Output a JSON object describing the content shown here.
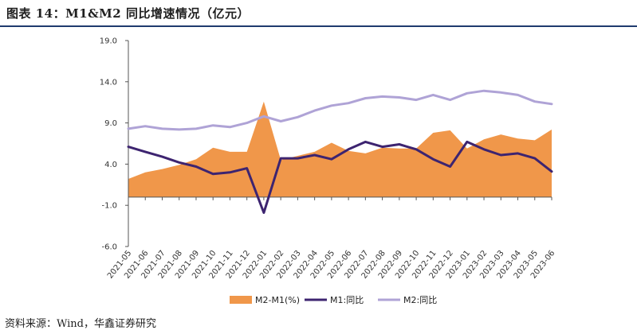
{
  "header": {
    "title": "图表 14：M1&M2 同比增速情况（亿元）"
  },
  "footer": {
    "source": "资料来源：Wind，华鑫证券研究"
  },
  "colors": {
    "area": "#F0974A",
    "m1": "#3D2470",
    "m2": "#AFA3D6",
    "axis": "#555555",
    "rule": "#1f3a6e"
  },
  "chart_data": {
    "type": "line",
    "title": "图表 14：M1&M2 同比增速情况（亿元）",
    "ylim": [
      -6.0,
      19.0
    ],
    "yticks": [
      "19.0",
      "14.0",
      "9.0",
      "4.0",
      "-1.0",
      "-6.0"
    ],
    "ytick_values": [
      19.0,
      14.0,
      9.0,
      4.0,
      -1.0,
      -6.0
    ],
    "grid": false,
    "legend_position": "bottom",
    "categories": [
      "2021-05",
      "2021-06",
      "2021-07",
      "2021-08",
      "2021-09",
      "2021-10",
      "2021-11",
      "2021-12",
      "2022-01",
      "2022-02",
      "2022-03",
      "2022-04",
      "2022-05",
      "2022-06",
      "2022-07",
      "2022-08",
      "2022-09",
      "2022-10",
      "2022-11",
      "2022-12",
      "2023-01",
      "2023-02",
      "2023-03",
      "2023-04",
      "2023-05",
      "2023-06"
    ],
    "series": [
      {
        "name": "M2-M1(%)",
        "kind": "area",
        "values": [
          2.2,
          3.0,
          3.4,
          3.9,
          4.6,
          6.0,
          5.5,
          5.5,
          11.6,
          4.5,
          5.0,
          5.5,
          6.6,
          5.6,
          5.3,
          6.0,
          5.9,
          5.9,
          7.8,
          8.1,
          5.9,
          7.0,
          7.6,
          7.1,
          6.9,
          8.2
        ]
      },
      {
        "name": "M1:同比",
        "kind": "line",
        "values": [
          6.1,
          5.5,
          4.9,
          4.2,
          3.7,
          2.8,
          3.0,
          3.5,
          -1.9,
          4.7,
          4.7,
          5.1,
          4.6,
          5.8,
          6.7,
          6.1,
          6.4,
          5.8,
          4.6,
          3.7,
          6.7,
          5.8,
          5.1,
          5.3,
          4.7,
          3.1
        ]
      },
      {
        "name": "M2:同比",
        "kind": "line",
        "values": [
          8.3,
          8.6,
          8.3,
          8.2,
          8.3,
          8.7,
          8.5,
          9.0,
          9.8,
          9.2,
          9.7,
          10.5,
          11.1,
          11.4,
          12.0,
          12.2,
          12.1,
          11.8,
          12.4,
          11.8,
          12.6,
          12.9,
          12.7,
          12.4,
          11.6,
          11.3
        ]
      }
    ]
  }
}
